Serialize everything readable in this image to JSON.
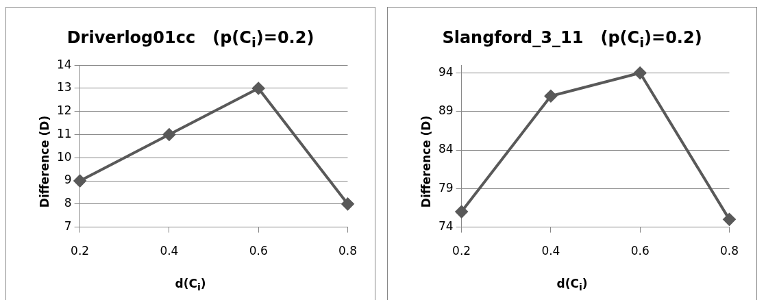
{
  "chart_data": [
    {
      "type": "line",
      "title": "Driverlog01cc   (p(C$_{i}$)=0.2)",
      "xlabel": "d(C$_{i}$)",
      "ylabel": "Difference  (D)",
      "categories": [
        "0.2",
        "0.4",
        "0.6",
        "0.8"
      ],
      "series": [
        {
          "color": "#595959",
          "values": [
            9,
            11,
            13,
            8
          ]
        }
      ],
      "ylim": [
        7,
        14
      ],
      "yticks": [
        7,
        8,
        9,
        10,
        11,
        12,
        13,
        14
      ],
      "grid": "y",
      "marker": "diamond"
    },
    {
      "type": "line",
      "title": "Slangford_3_11   (p(C$_{i}$)=0.2)",
      "xlabel": "d(C$_{i}$)",
      "ylabel": "Difference (D)",
      "categories": [
        "0.2",
        "0.4",
        "0.6",
        "0.8"
      ],
      "series": [
        {
          "color": "#595959",
          "values": [
            76,
            91,
            94,
            75
          ]
        }
      ],
      "ylim": [
        74,
        95
      ],
      "yticks": [
        74,
        79,
        84,
        89,
        94
      ],
      "grid": "y",
      "marker": "diamond"
    }
  ]
}
